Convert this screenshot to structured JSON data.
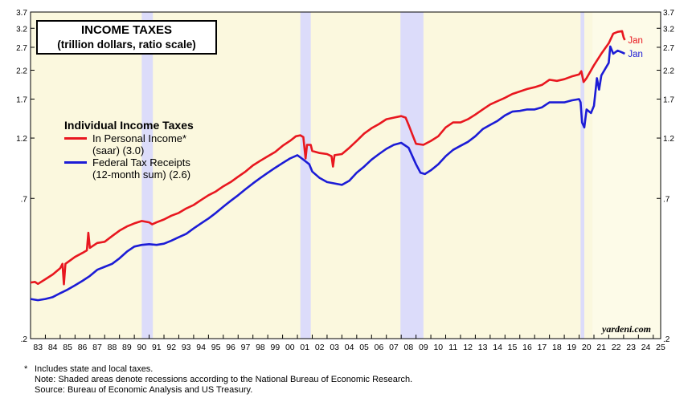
{
  "title": {
    "line1": "INCOME TAXES",
    "line2": "(trillion dollars, ratio scale)"
  },
  "legend": {
    "title": "Individual Income Taxes",
    "items": [
      {
        "label1": "In Personal Income*",
        "label2": "(saar) (3.0)",
        "color": "#e8171f"
      },
      {
        "label1": "Federal Tax Receipts",
        "label2": "(12-month sum) (2.6)",
        "color": "#1c1cd6"
      }
    ]
  },
  "watermark": "yardeni.com",
  "footnotes": [
    {
      "mark": "*",
      "text": "Includes state and local taxes."
    },
    {
      "mark": "",
      "text": "Note: Shaded areas denote recessions according to the National Bureau of Economic Research."
    },
    {
      "mark": "",
      "text": "Source: Bureau of Economic Analysis and US Treasury."
    }
  ],
  "colors": {
    "plot_bg": "#fbf8de",
    "recession": "#dcdcfa",
    "red": "#e8171f",
    "blue": "#1c1cd6"
  },
  "chart_data": {
    "type": "line",
    "scale": "log",
    "title": "INCOME TAXES",
    "subtitle": "(trillion dollars, ratio scale)",
    "xlim": [
      1983,
      2025.5
    ],
    "ylim": [
      0.2,
      3.7
    ],
    "yticks": [
      0.2,
      0.7,
      1.2,
      1.7,
      2.2,
      2.7,
      3.2,
      3.7
    ],
    "ytick_labels": [
      ".2",
      ".7",
      "1.2",
      "1.7",
      "2.2",
      "2.7",
      "3.2",
      "3.7"
    ],
    "xtick_labels": [
      "83",
      "84",
      "85",
      "86",
      "87",
      "88",
      "89",
      "90",
      "91",
      "92",
      "93",
      "94",
      "95",
      "96",
      "97",
      "98",
      "99",
      "00",
      "01",
      "02",
      "03",
      "04",
      "05",
      "06",
      "07",
      "08",
      "09",
      "10",
      "11",
      "12",
      "13",
      "14",
      "15",
      "16",
      "17",
      "18",
      "19",
      "20",
      "21",
      "22",
      "23",
      "24",
      "25"
    ],
    "recessions": [
      [
        1990.5,
        1991.25
      ],
      [
        2001.2,
        2001.9
      ],
      [
        2007.95,
        2009.5
      ],
      [
        2020.1,
        2020.35
      ]
    ],
    "series": [
      {
        "name": "In Personal Income* (saar) (3.0)",
        "color": "#e8171f",
        "end_label": "Jan",
        "points": [
          [
            1983,
            0.33
          ],
          [
            1983.3,
            0.332
          ],
          [
            1983.5,
            0.326
          ],
          [
            1984,
            0.34
          ],
          [
            1984.5,
            0.355
          ],
          [
            1985,
            0.375
          ],
          [
            1985.15,
            0.39
          ],
          [
            1985.25,
            0.325
          ],
          [
            1985.35,
            0.39
          ],
          [
            1986,
            0.415
          ],
          [
            1986.5,
            0.43
          ],
          [
            1986.8,
            0.44
          ],
          [
            1986.9,
            0.515
          ],
          [
            1987,
            0.45
          ],
          [
            1987.5,
            0.47
          ],
          [
            1988,
            0.475
          ],
          [
            1988.5,
            0.5
          ],
          [
            1989,
            0.525
          ],
          [
            1989.5,
            0.545
          ],
          [
            1990,
            0.56
          ],
          [
            1990.5,
            0.572
          ],
          [
            1991,
            0.565
          ],
          [
            1991.2,
            0.555
          ],
          [
            1991.5,
            0.565
          ],
          [
            1992,
            0.58
          ],
          [
            1992.5,
            0.6
          ],
          [
            1993,
            0.615
          ],
          [
            1993.5,
            0.64
          ],
          [
            1994,
            0.66
          ],
          [
            1994.5,
            0.69
          ],
          [
            1995,
            0.72
          ],
          [
            1995.5,
            0.745
          ],
          [
            1996,
            0.78
          ],
          [
            1996.5,
            0.81
          ],
          [
            1997,
            0.85
          ],
          [
            1997.5,
            0.89
          ],
          [
            1998,
            0.94
          ],
          [
            1998.5,
            0.98
          ],
          [
            1999,
            1.02
          ],
          [
            1999.5,
            1.06
          ],
          [
            2000,
            1.12
          ],
          [
            2000.5,
            1.17
          ],
          [
            2000.9,
            1.22
          ],
          [
            2001.2,
            1.23
          ],
          [
            2001.4,
            1.21
          ],
          [
            2001.55,
            1.0
          ],
          [
            2001.65,
            1.13
          ],
          [
            2001.9,
            1.13
          ],
          [
            2002,
            1.07
          ],
          [
            2002.5,
            1.05
          ],
          [
            2003,
            1.04
          ],
          [
            2003.3,
            1.02
          ],
          [
            2003.4,
            0.93
          ],
          [
            2003.5,
            1.03
          ],
          [
            2004,
            1.04
          ],
          [
            2004.5,
            1.1
          ],
          [
            2005,
            1.17
          ],
          [
            2005.5,
            1.25
          ],
          [
            2006,
            1.31
          ],
          [
            2006.5,
            1.36
          ],
          [
            2007,
            1.42
          ],
          [
            2007.5,
            1.44
          ],
          [
            2008,
            1.46
          ],
          [
            2008.3,
            1.44
          ],
          [
            2008.5,
            1.35
          ],
          [
            2008.8,
            1.22
          ],
          [
            2009,
            1.14
          ],
          [
            2009.5,
            1.13
          ],
          [
            2010,
            1.17
          ],
          [
            2010.5,
            1.22
          ],
          [
            2011,
            1.32
          ],
          [
            2011.5,
            1.38
          ],
          [
            2012,
            1.38
          ],
          [
            2012.5,
            1.42
          ],
          [
            2013,
            1.48
          ],
          [
            2013.5,
            1.55
          ],
          [
            2014,
            1.62
          ],
          [
            2014.5,
            1.67
          ],
          [
            2015,
            1.72
          ],
          [
            2015.5,
            1.78
          ],
          [
            2016,
            1.82
          ],
          [
            2016.5,
            1.86
          ],
          [
            2017,
            1.89
          ],
          [
            2017.5,
            1.93
          ],
          [
            2018,
            2.02
          ],
          [
            2018.5,
            2.0
          ],
          [
            2019,
            2.03
          ],
          [
            2019.5,
            2.08
          ],
          [
            2020,
            2.12
          ],
          [
            2020.15,
            2.18
          ],
          [
            2020.3,
            1.98
          ],
          [
            2020.5,
            2.05
          ],
          [
            2021,
            2.3
          ],
          [
            2021.5,
            2.55
          ],
          [
            2022,
            2.8
          ],
          [
            2022.3,
            3.05
          ],
          [
            2022.6,
            3.1
          ],
          [
            2022.9,
            3.12
          ],
          [
            2023,
            2.95
          ],
          [
            2023.08,
            2.88
          ]
        ]
      },
      {
        "name": "Federal Tax Receipts (12-month sum) (2.6)",
        "color": "#1c1cd6",
        "end_label": "Jan",
        "points": [
          [
            1983,
            0.285
          ],
          [
            1983.5,
            0.282
          ],
          [
            1984,
            0.285
          ],
          [
            1984.5,
            0.29
          ],
          [
            1985,
            0.3
          ],
          [
            1985.5,
            0.31
          ],
          [
            1986,
            0.322
          ],
          [
            1986.5,
            0.335
          ],
          [
            1987,
            0.35
          ],
          [
            1987.5,
            0.37
          ],
          [
            1988,
            0.38
          ],
          [
            1988.5,
            0.39
          ],
          [
            1989,
            0.41
          ],
          [
            1989.5,
            0.435
          ],
          [
            1990,
            0.455
          ],
          [
            1990.5,
            0.462
          ],
          [
            1991,
            0.465
          ],
          [
            1991.5,
            0.462
          ],
          [
            1992,
            0.467
          ],
          [
            1992.5,
            0.48
          ],
          [
            1993,
            0.495
          ],
          [
            1993.5,
            0.51
          ],
          [
            1994,
            0.535
          ],
          [
            1994.5,
            0.56
          ],
          [
            1995,
            0.585
          ],
          [
            1995.5,
            0.615
          ],
          [
            1996,
            0.65
          ],
          [
            1996.5,
            0.685
          ],
          [
            1997,
            0.72
          ],
          [
            1997.5,
            0.76
          ],
          [
            1998,
            0.8
          ],
          [
            1998.5,
            0.84
          ],
          [
            1999,
            0.88
          ],
          [
            1999.5,
            0.92
          ],
          [
            2000,
            0.96
          ],
          [
            2000.5,
            1.0
          ],
          [
            2001,
            1.03
          ],
          [
            2001.3,
            1.0
          ],
          [
            2001.8,
            0.95
          ],
          [
            2002,
            0.89
          ],
          [
            2002.5,
            0.84
          ],
          [
            2003,
            0.81
          ],
          [
            2003.5,
            0.8
          ],
          [
            2004,
            0.79
          ],
          [
            2004.5,
            0.82
          ],
          [
            2005,
            0.88
          ],
          [
            2005.5,
            0.93
          ],
          [
            2006,
            0.99
          ],
          [
            2006.5,
            1.04
          ],
          [
            2007,
            1.09
          ],
          [
            2007.5,
            1.13
          ],
          [
            2008,
            1.15
          ],
          [
            2008.5,
            1.1
          ],
          [
            2009,
            0.95
          ],
          [
            2009.3,
            0.88
          ],
          [
            2009.6,
            0.87
          ],
          [
            2010,
            0.9
          ],
          [
            2010.5,
            0.95
          ],
          [
            2011,
            1.02
          ],
          [
            2011.5,
            1.08
          ],
          [
            2012,
            1.12
          ],
          [
            2012.5,
            1.16
          ],
          [
            2013,
            1.22
          ],
          [
            2013.5,
            1.3
          ],
          [
            2014,
            1.35
          ],
          [
            2014.5,
            1.4
          ],
          [
            2015,
            1.47
          ],
          [
            2015.5,
            1.52
          ],
          [
            2016,
            1.53
          ],
          [
            2016.5,
            1.55
          ],
          [
            2017,
            1.55
          ],
          [
            2017.5,
            1.58
          ],
          [
            2018,
            1.65
          ],
          [
            2018.5,
            1.65
          ],
          [
            2019,
            1.65
          ],
          [
            2019.5,
            1.68
          ],
          [
            2020,
            1.7
          ],
          [
            2020.1,
            1.65
          ],
          [
            2020.2,
            1.38
          ],
          [
            2020.35,
            1.32
          ],
          [
            2020.5,
            1.55
          ],
          [
            2020.8,
            1.5
          ],
          [
            2021,
            1.6
          ],
          [
            2021.2,
            2.05
          ],
          [
            2021.35,
            1.85
          ],
          [
            2021.5,
            2.1
          ],
          [
            2022,
            2.35
          ],
          [
            2022.1,
            2.72
          ],
          [
            2022.3,
            2.55
          ],
          [
            2022.6,
            2.62
          ],
          [
            2022.9,
            2.58
          ],
          [
            2023.08,
            2.55
          ]
        ]
      }
    ]
  }
}
